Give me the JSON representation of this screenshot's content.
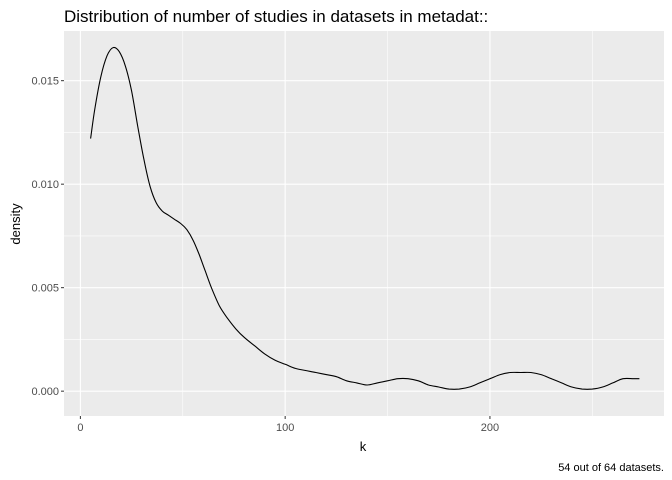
{
  "chart_data": {
    "type": "line",
    "title": "Distribution of number of studies in datasets in metadat::",
    "xlabel": "k",
    "ylabel": "density",
    "caption": "54 out of 64 datasets.",
    "xlim": [
      -8,
      285
    ],
    "ylim": [
      -0.0012,
      0.0174
    ],
    "x_ticks": [
      0,
      100,
      200
    ],
    "x_tick_labels": [
      "0",
      "100",
      "200"
    ],
    "x_minor_ticks": [
      50,
      150,
      250
    ],
    "y_ticks": [
      0,
      0.005,
      0.01,
      0.015
    ],
    "y_tick_labels": [
      "0.000",
      "0.005",
      "0.010",
      "0.015"
    ],
    "y_minor_ticks": [
      0.0025,
      0.0075,
      0.0125
    ],
    "grid": true,
    "colors": {
      "panel": "#ebebeb",
      "grid": "#ffffff",
      "line": "#000000"
    },
    "series": [
      {
        "x": [
          5,
          7,
          10,
          13,
          16,
          19,
          22,
          25,
          28,
          31,
          34,
          37,
          40,
          43,
          46,
          49,
          52,
          55,
          58,
          61,
          64,
          68,
          72,
          76,
          80,
          85,
          90,
          95,
          100,
          105,
          110,
          115,
          120,
          125,
          130,
          135,
          140,
          145,
          150,
          155,
          160,
          165,
          170,
          175,
          180,
          185,
          190,
          195,
          200,
          205,
          210,
          215,
          220,
          225,
          230,
          235,
          240,
          245,
          250,
          255,
          260,
          265,
          270,
          273
        ],
        "y": [
          0.0122,
          0.0136,
          0.0152,
          0.0162,
          0.0166,
          0.0164,
          0.0157,
          0.0145,
          0.0128,
          0.0112,
          0.0099,
          0.0091,
          0.0087,
          0.0085,
          0.0083,
          0.0081,
          0.0078,
          0.0073,
          0.0066,
          0.0058,
          0.005,
          0.0041,
          0.0035,
          0.003,
          0.0026,
          0.0022,
          0.0018,
          0.0015,
          0.0013,
          0.0011,
          0.001,
          0.0009,
          0.0008,
          0.0007,
          0.0005,
          0.0004,
          0.0003,
          0.0004,
          0.0005,
          0.0006,
          0.0006,
          0.0005,
          0.0003,
          0.0002,
          0.0001,
          0.0001,
          0.0002,
          0.0004,
          0.0006,
          0.0008,
          0.0009,
          0.0009,
          0.0009,
          0.0008,
          0.0006,
          0.0004,
          0.0002,
          0.0001,
          0.0001,
          0.0002,
          0.0004,
          0.0006,
          0.0006,
          0.0006
        ]
      }
    ]
  }
}
